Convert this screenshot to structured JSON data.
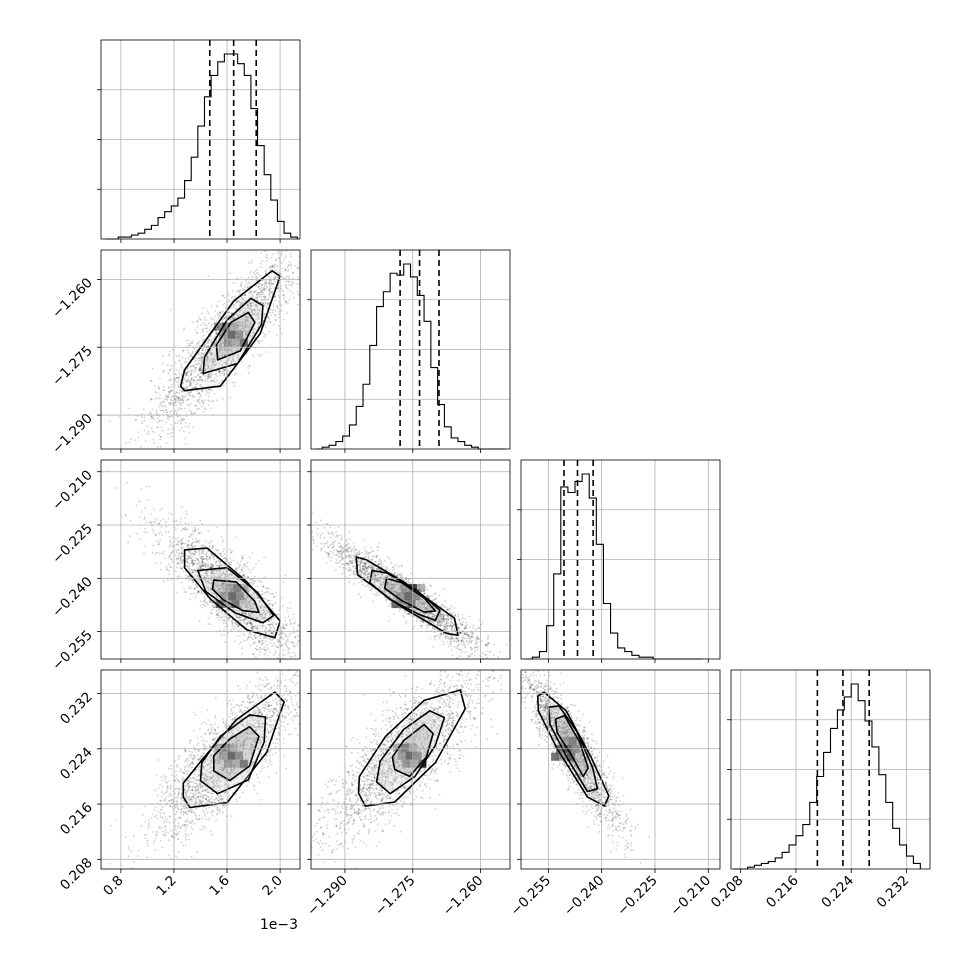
{
  "chart_data": {
    "type": "corner",
    "params": [
      {
        "range": [
          0.00065,
          0.00215
        ],
        "ticks": [
          0.8,
          1.2,
          1.6,
          2.0
        ],
        "tick_labels": [
          "0.8",
          "1.2",
          "1.6",
          "2.0"
        ],
        "offset_label": "1e−3",
        "tick_scale": 0.001,
        "quantiles": [
          0.00147,
          0.00165,
          0.00182
        ]
      },
      {
        "range": [
          -1.2975,
          -1.2535
        ],
        "ticks": [
          -1.29,
          -1.275,
          -1.26
        ],
        "tick_labels": [
          "−1.290",
          "−1.275",
          "−1.260"
        ],
        "quantiles": [
          -1.2778,
          -1.2735,
          -1.2692
        ]
      },
      {
        "range": [
          -0.2627,
          -0.2067
        ],
        "ticks": [
          -0.255,
          -0.24,
          -0.225,
          -0.21
        ],
        "tick_labels": [
          "−0.255",
          "−0.240",
          "−0.225",
          "−0.210"
        ],
        "quantiles": [
          -0.2506,
          -0.2468,
          -0.2424
        ]
      },
      {
        "range": [
          0.2066,
          0.2354
        ],
        "ticks": [
          0.208,
          0.216,
          0.224,
          0.232
        ],
        "tick_labels": [
          "0.208",
          "0.216",
          "0.224",
          "0.232"
        ],
        "quantiles": [
          0.2191,
          0.2228,
          0.2266
        ]
      }
    ],
    "histograms": [
      {
        "bins": [
          0.00068,
          0.00073,
          0.00078,
          0.00083,
          0.00088,
          0.00093,
          0.00098,
          0.00103,
          0.00108,
          0.00113,
          0.00118,
          0.00123,
          0.00128,
          0.00133,
          0.00138,
          0.00143,
          0.00148,
          0.00153,
          0.00158,
          0.00163,
          0.00168,
          0.00173,
          0.00178,
          0.00183,
          0.00188,
          0.00193,
          0.00198,
          0.00203,
          0.00208,
          0.00213
        ],
        "counts": [
          0,
          0,
          1,
          1,
          2,
          3,
          5,
          7,
          11,
          14,
          17,
          21,
          30,
          42,
          58,
          73,
          84,
          91,
          95,
          95,
          90,
          84,
          67,
          48,
          33,
          20,
          9,
          3,
          1
        ]
      },
      {
        "bins": [
          -1.2965,
          -1.295,
          -1.2935,
          -1.292,
          -1.2905,
          -1.289,
          -1.2875,
          -1.286,
          -1.2845,
          -1.283,
          -1.2815,
          -1.28,
          -1.2785,
          -1.277,
          -1.2755,
          -1.274,
          -1.2725,
          -1.271,
          -1.2695,
          -1.268,
          -1.2665,
          -1.265,
          -1.2635,
          -1.262,
          -1.2605,
          -1.259,
          -1.2575,
          -1.256,
          -1.2545
        ],
        "counts": [
          0,
          1,
          2,
          4,
          7,
          13,
          23,
          35,
          56,
          77,
          85,
          95,
          94,
          100,
          93,
          83,
          69,
          44,
          24,
          12,
          6,
          4,
          2,
          1,
          0,
          0,
          0,
          0
        ]
      },
      {
        "bins": [
          -0.2615,
          -0.2595,
          -0.2575,
          -0.2555,
          -0.2535,
          -0.2515,
          -0.2495,
          -0.2475,
          -0.2455,
          -0.2435,
          -0.2415,
          -0.2395,
          -0.2375,
          -0.2355,
          -0.2335,
          -0.2315,
          -0.2295,
          -0.2275,
          -0.2255,
          -0.2235,
          -0.2215,
          -0.2195,
          -0.2175,
          -0.2155,
          -0.2135,
          -0.2115
        ],
        "counts": [
          0,
          1,
          4,
          18,
          46,
          93,
          90,
          96,
          100,
          87,
          62,
          30,
          14,
          6,
          4,
          2,
          1,
          1,
          0,
          0,
          0,
          0,
          0,
          0,
          0
        ]
      },
      {
        "bins": [
          0.207,
          0.208,
          0.209,
          0.21,
          0.211,
          0.212,
          0.213,
          0.214,
          0.215,
          0.216,
          0.217,
          0.218,
          0.219,
          0.22,
          0.221,
          0.222,
          0.223,
          0.224,
          0.225,
          0.226,
          0.227,
          0.228,
          0.229,
          0.23,
          0.231,
          0.232,
          0.233,
          0.234
        ],
        "counts": [
          0,
          0,
          1,
          2,
          3,
          4,
          6,
          9,
          13,
          18,
          24,
          36,
          50,
          63,
          76,
          86,
          93,
          100,
          91,
          80,
          66,
          51,
          36,
          22,
          13,
          7,
          3
        ]
      }
    ],
    "contours": [
      {
        "row": 1,
        "col": 0,
        "ellipses": [
          {
            "points": [
              [
                0.00128,
                -1.2846
              ],
              [
                0.00155,
                -1.2836
              ],
              [
                0.00185,
                -1.272
              ],
              [
                0.002,
                -1.2593
              ],
              [
                0.00194,
                -1.2581
              ],
              [
                0.00165,
                -1.2648
              ],
              [
                0.00128,
                -1.28
              ],
              [
                0.00125,
                -1.2836
              ]
            ]
          },
          {
            "points": [
              [
                0.00142,
                -1.2808
              ],
              [
                0.00168,
                -1.2786
              ],
              [
                0.00186,
                -1.27
              ],
              [
                0.00187,
                -1.2658
              ],
              [
                0.00178,
                -1.2642
              ],
              [
                0.0016,
                -1.269
              ],
              [
                0.00143,
                -1.2772
              ]
            ]
          },
          {
            "points": [
              [
                0.00153,
                -1.2778
              ],
              [
                0.0017,
                -1.2758
              ],
              [
                0.00181,
                -1.2695
              ],
              [
                0.00176,
                -1.2673
              ],
              [
                0.00163,
                -1.2695
              ],
              [
                0.00152,
                -1.2745
              ]
            ]
          }
        ]
      },
      {
        "row": 2,
        "col": 0,
        "ellipses": [
          {
            "points": [
              [
                0.00128,
                -0.232
              ],
              [
                0.00145,
                -0.2315
              ],
              [
                0.00175,
                -0.241
              ],
              [
                0.002,
                -0.252
              ],
              [
                0.00196,
                -0.2567
              ],
              [
                0.00175,
                -0.2545
              ],
              [
                0.00148,
                -0.246
              ],
              [
                0.00128,
                -0.237
              ]
            ]
          },
          {
            "points": [
              [
                0.00138,
                -0.2378
              ],
              [
                0.0016,
                -0.237
              ],
              [
                0.00183,
                -0.244
              ],
              [
                0.00195,
                -0.2505
              ],
              [
                0.00187,
                -0.2525
              ],
              [
                0.00166,
                -0.2497
              ],
              [
                0.00144,
                -0.2437
              ]
            ]
          },
          {
            "points": [
              [
                0.0015,
                -0.2405
              ],
              [
                0.00167,
                -0.241
              ],
              [
                0.00181,
                -0.2465
              ],
              [
                0.00184,
                -0.2496
              ],
              [
                0.00172,
                -0.2491
              ],
              [
                0.00157,
                -0.246
              ],
              [
                0.00149,
                -0.243
              ]
            ]
          }
        ]
      },
      {
        "row": 2,
        "col": 1,
        "ellipses": [
          {
            "points": [
              [
                -1.2875,
                -0.234
              ],
              [
                -1.2852,
                -0.2348
              ],
              [
                -1.277,
                -0.241
              ],
              [
                -1.2658,
                -0.2512
              ],
              [
                -1.265,
                -0.256
              ],
              [
                -1.2675,
                -0.2555
              ],
              [
                -1.2775,
                -0.248
              ],
              [
                -1.2872,
                -0.239
              ]
            ]
          },
          {
            "points": [
              [
                -1.284,
                -0.2378
              ],
              [
                -1.2807,
                -0.2385
              ],
              [
                -1.274,
                -0.2435
              ],
              [
                -1.269,
                -0.249
              ],
              [
                -1.27,
                -0.2518
              ],
              [
                -1.2735,
                -0.2502
              ],
              [
                -1.28,
                -0.246
              ],
              [
                -1.2845,
                -0.2412
              ]
            ]
          },
          {
            "points": [
              [
                -1.2808,
                -0.24
              ],
              [
                -1.2775,
                -0.2412
              ],
              [
                -1.2725,
                -0.2455
              ],
              [
                -1.27,
                -0.2492
              ],
              [
                -1.2725,
                -0.2495
              ],
              [
                -1.2775,
                -0.2462
              ],
              [
                -1.2812,
                -0.2428
              ]
            ]
          }
        ]
      },
      {
        "row": 3,
        "col": 0,
        "ellipses": [
          {
            "points": [
              [
                0.00127,
                0.217
              ],
              [
                0.00132,
                0.2155
              ],
              [
                0.0016,
                0.2162
              ],
              [
                0.0019,
                0.2235
              ],
              [
                0.00203,
                0.2308
              ],
              [
                0.00196,
                0.2322
              ],
              [
                0.00167,
                0.2282
              ],
              [
                0.00142,
                0.2226
              ],
              [
                0.00127,
                0.219
              ]
            ]
          },
          {
            "points": [
              [
                0.0014,
                0.2194
              ],
              [
                0.00153,
                0.2175
              ],
              [
                0.00176,
                0.2195
              ],
              [
                0.00188,
                0.225
              ],
              [
                0.00189,
                0.2286
              ],
              [
                0.00177,
                0.2289
              ],
              [
                0.00155,
                0.2258
              ],
              [
                0.00141,
                0.222
              ]
            ]
          },
          {
            "points": [
              [
                0.0015,
                0.2208
              ],
              [
                0.00162,
                0.2194
              ],
              [
                0.00177,
                0.2215
              ],
              [
                0.00184,
                0.2258
              ],
              [
                0.00177,
                0.2272
              ],
              [
                0.00162,
                0.2254
              ],
              [
                0.0015,
                0.223
              ]
            ]
          }
        ]
      },
      {
        "row": 3,
        "col": 1,
        "ellipses": [
          {
            "points": [
              [
                -1.287,
                0.2176
              ],
              [
                -1.2855,
                0.2157
              ],
              [
                -1.279,
                0.2163
              ],
              [
                -1.27,
                0.222
              ],
              [
                -1.2634,
                0.2298
              ],
              [
                -1.2645,
                0.2325
              ],
              [
                -1.2725,
                0.231
              ],
              [
                -1.281,
                0.2258
              ],
              [
                -1.2868,
                0.22
              ]
            ]
          },
          {
            "points": [
              [
                -1.283,
                0.2192
              ],
              [
                -1.28,
                0.2175
              ],
              [
                -1.2745,
                0.22
              ],
              [
                -1.27,
                0.2245
              ],
              [
                -1.268,
                0.2285
              ],
              [
                -1.2712,
                0.2295
              ],
              [
                -1.277,
                0.2268
              ],
              [
                -1.2822,
                0.2222
              ]
            ]
          },
          {
            "points": [
              [
                -1.279,
                0.221
              ],
              [
                -1.2757,
                0.22
              ],
              [
                -1.272,
                0.2228
              ],
              [
                -1.2705,
                0.2262
              ],
              [
                -1.2725,
                0.2275
              ],
              [
                -1.277,
                0.2252
              ],
              [
                -1.2795,
                0.2228
              ]
            ]
          }
        ]
      },
      {
        "row": 3,
        "col": 2,
        "ellipses": [
          {
            "points": [
              [
                -0.258,
                0.2316
              ],
              [
                -0.2562,
                0.2322
              ],
              [
                -0.25,
                0.2295
              ],
              [
                -0.243,
                0.2228
              ],
              [
                -0.238,
                0.2172
              ],
              [
                -0.2392,
                0.2157
              ],
              [
                -0.244,
                0.217
              ],
              [
                -0.2525,
                0.224
              ],
              [
                -0.2578,
                0.2295
              ]
            ]
          },
          {
            "points": [
              [
                -0.255,
                0.23
              ],
              [
                -0.252,
                0.2302
              ],
              [
                -0.247,
                0.2265
              ],
              [
                -0.2425,
                0.2212
              ],
              [
                -0.2412,
                0.2182
              ],
              [
                -0.244,
                0.2178
              ],
              [
                -0.2495,
                0.2225
              ],
              [
                -0.2545,
                0.2275
              ]
            ]
          },
          {
            "points": [
              [
                -0.253,
                0.2283
              ],
              [
                -0.2505,
                0.2288
              ],
              [
                -0.2462,
                0.225
              ],
              [
                -0.2438,
                0.2212
              ],
              [
                -0.2452,
                0.22
              ],
              [
                -0.249,
                0.2235
              ],
              [
                -0.2525,
                0.2263
              ]
            ]
          }
        ]
      }
    ],
    "hist2d_peaks": [
      {
        "row": 1,
        "col": 0,
        "center": [
          0.00163,
          -1.2722
        ]
      },
      {
        "row": 2,
        "col": 0,
        "center": [
          0.00164,
          -0.245
        ]
      },
      {
        "row": 2,
        "col": 1,
        "center": [
          -1.276,
          -0.245
        ]
      },
      {
        "row": 3,
        "col": 0,
        "center": [
          0.00163,
          0.223
        ]
      },
      {
        "row": 3,
        "col": 1,
        "center": [
          -1.2757,
          0.223
        ]
      },
      {
        "row": 3,
        "col": 2,
        "center": [
          -0.2495,
          0.224
        ]
      }
    ],
    "grid": true,
    "title": "",
    "xlabel": "",
    "ylabel": ""
  },
  "colors": {
    "line": "#000000",
    "grid": "#b0b0b0",
    "points": "#000000",
    "hist2d_dark": "#000000"
  }
}
